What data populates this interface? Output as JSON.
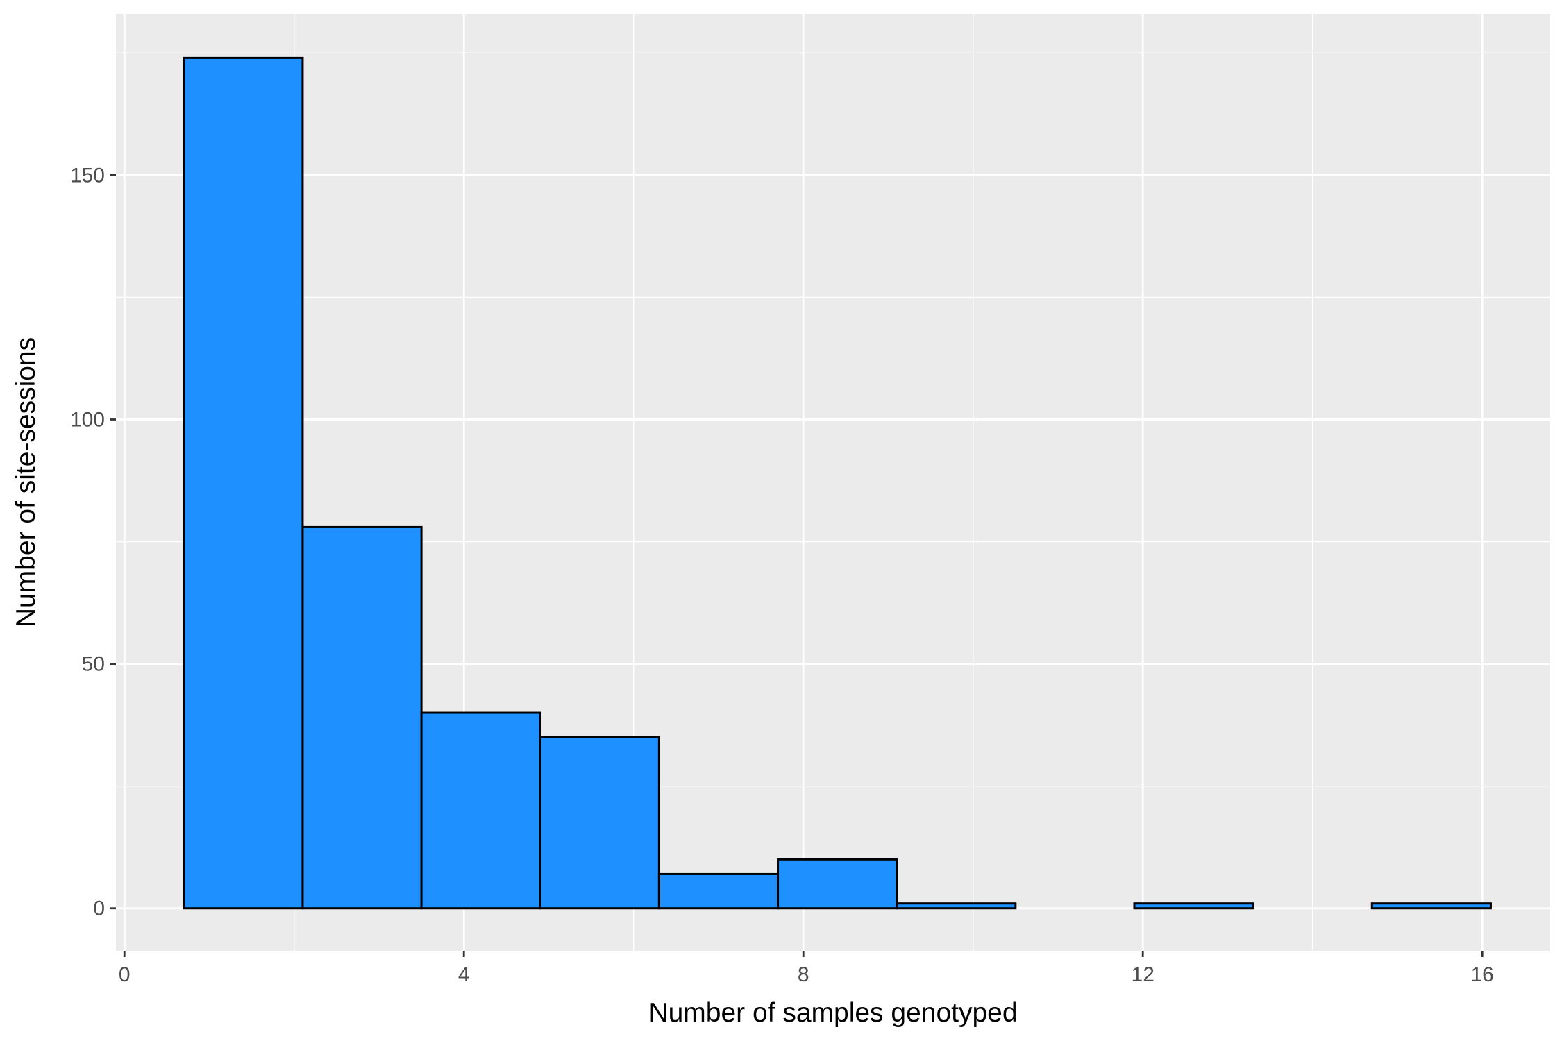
{
  "chart_data": {
    "type": "bar",
    "subtype": "histogram",
    "title": "",
    "xlabel": "Number of samples genotyped",
    "ylabel": "Number of site-sessions",
    "xlim": [
      -0.1,
      16.8
    ],
    "ylim": [
      -8.7,
      183
    ],
    "x_ticks": [
      0,
      4,
      8,
      12,
      16
    ],
    "x_tick_labels": [
      "0",
      "4",
      "8",
      "12",
      "16"
    ],
    "y_ticks": [
      0,
      50,
      100,
      150
    ],
    "y_tick_labels": [
      "0",
      "50",
      "100",
      "150"
    ],
    "bins": [
      {
        "start": 0.7,
        "end": 2.1,
        "count": 174
      },
      {
        "start": 2.1,
        "end": 3.5,
        "count": 78
      },
      {
        "start": 3.5,
        "end": 4.9,
        "count": 40
      },
      {
        "start": 4.9,
        "end": 6.3,
        "count": 35
      },
      {
        "start": 6.3,
        "end": 7.7,
        "count": 7
      },
      {
        "start": 7.7,
        "end": 9.1,
        "count": 10
      },
      {
        "start": 9.1,
        "end": 10.5,
        "count": 1
      },
      {
        "start": 10.5,
        "end": 11.9,
        "count": 0
      },
      {
        "start": 11.9,
        "end": 13.3,
        "count": 1
      },
      {
        "start": 13.3,
        "end": 14.7,
        "count": 0
      },
      {
        "start": 14.7,
        "end": 16.1,
        "count": 1
      }
    ],
    "grid": true,
    "legend": "none",
    "colors": {
      "fill": "#1e90ff",
      "outline": "#000000",
      "panel_background": "#ebebeb",
      "grid": "#ffffff",
      "tick_text": "#4d4d4d"
    }
  }
}
